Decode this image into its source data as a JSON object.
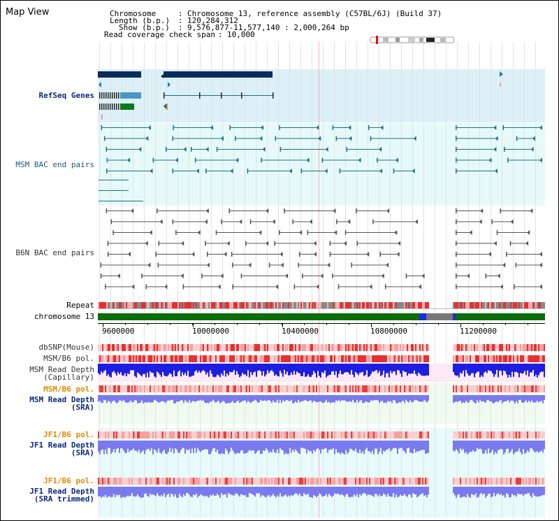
{
  "title": "Map View",
  "header": {
    "chromosome_label": "Chromosome",
    "chromosome_value": "Chromosome 13, reference assembly (C57BL/6J) (Build 37)",
    "length_label": "Length (b.p.)",
    "length_value": "120,284,312",
    "show_label": "Show (b.p.)",
    "show_value": "9,576,877-11,577,140 : 2,000,264 bp",
    "coverage_label": "Read coverage check span",
    "coverage_value": "10,000"
  },
  "tracks": {
    "refseq": "RefSeq Genes",
    "msm_bac": "MSM BAC end pairs",
    "b6n_bac": "B6N BAC end pairs",
    "repeat": "Repeat",
    "chromosome": "chromosome 13",
    "dbsnp": "dbSNP(Mouse)",
    "msm_b6_pol_1": "MSM/B6 pol.",
    "msm_depth_cap_1": "MSM Read Depth",
    "msm_depth_cap_2": "(Capillary)",
    "msm_b6_pol_2": "MSM/B6 pol.",
    "msm_depth_sra_1": "MSM Read Depth",
    "msm_depth_sra_2": "(SRA)",
    "jf1_pol_1": "JF1/B6 pol.",
    "jf1_depth_1": "JF1 Read Depth",
    "jf1_depth_2": "(SRA)",
    "jf1_pol_2": "JF1/B6 pol.",
    "jf1_trim_1": "JF1 Read Depth",
    "jf1_trim_2": "(SRA trimmed)"
  },
  "axis": {
    "ticks": [
      "9600000",
      "10000000",
      "10400000",
      "10800000",
      "11200000"
    ]
  },
  "colors": {
    "refseq_bg": "#dcf0f8",
    "bac_bg": "#e6fafa",
    "chromosome": "#0a6e0a",
    "gap": "#777777",
    "repeat_red": "#e53030",
    "depth_blue": "#1e1ee0",
    "depth_light": "#7a7aee",
    "snp_red": "#f08080"
  }
}
